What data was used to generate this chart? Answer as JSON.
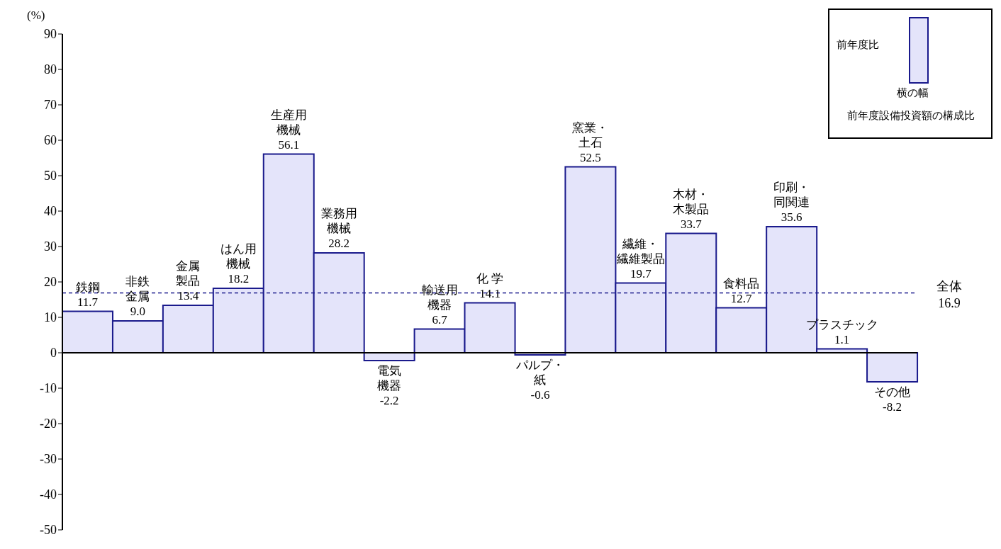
{
  "chart_data": {
    "type": "bar",
    "ylabel": "(%)",
    "categories": [
      "鉄鋼",
      "非鉄金属",
      "金属製品",
      "はん用機械",
      "生産用機械",
      "業務用機械",
      "電気機器",
      "輸送用機器",
      "化 学",
      "パルプ・紙",
      "窯業・土石",
      "繊維・繊維製品",
      "木材・木製品",
      "食料品",
      "印刷・同関連",
      "プラスチック",
      "その他"
    ],
    "values": [
      11.7,
      9.0,
      13.4,
      18.2,
      56.1,
      28.2,
      -2.2,
      6.7,
      14.1,
      -0.6,
      52.5,
      19.7,
      33.7,
      12.7,
      35.6,
      1.1,
      -8.2
    ],
    "color": "#e4e4fa",
    "ylim": [
      -50,
      90
    ],
    "yticks": [
      -50,
      -40,
      -30,
      -20,
      -10,
      0,
      10,
      20,
      30,
      40,
      50,
      60,
      70,
      80,
      90
    ],
    "value_labels": [
      "11.7",
      "9.0",
      "13.4",
      "18.2",
      "56.1",
      "28.2",
      "-2.2",
      "6.7",
      "14.1",
      "-0.6",
      "52.5",
      "19.7",
      "33.7",
      "12.7",
      "35.6",
      "1.1",
      "-8.2"
    ],
    "tick_labels": "y",
    "ref_lines": [
      {
        "axis": "y",
        "value": 16.9,
        "label": "全体\n16.9",
        "color": "#1a1a8c",
        "line_style": "dashed"
      }
    ],
    "annotations": [
      "前年度比",
      "横の幅",
      "前年度設備投資額の構成比"
    ]
  }
}
